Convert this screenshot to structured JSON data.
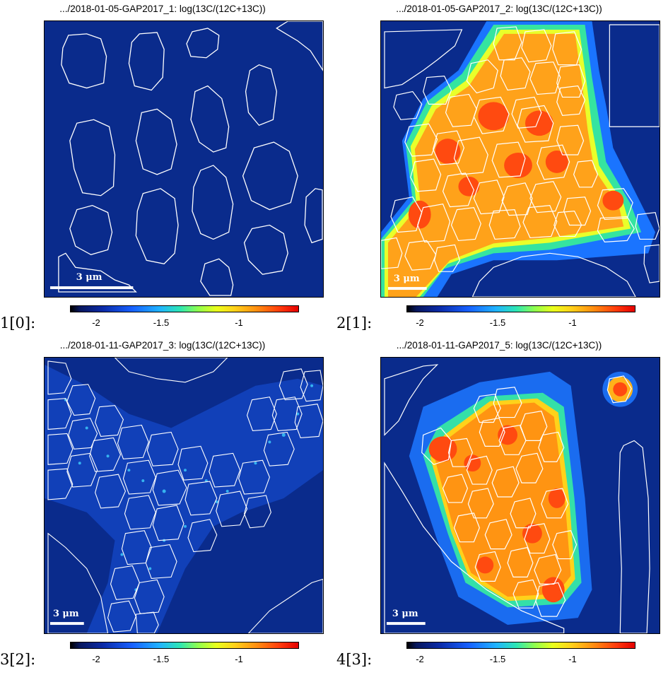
{
  "panels": [
    {
      "label": "1[0]:",
      "title": ".../2018-01-05-GAP2017_1: log(13C/(12C+13C))",
      "scalebar": "3 μm"
    },
    {
      "label": "2[1]:",
      "title": ".../2018-01-05-GAP2017_2: log(13C/(12C+13C))",
      "scalebar": "3 μm"
    },
    {
      "label": "3[2]:",
      "title": ".../2018-01-11-GAP2017_3: log(13C/(12C+13C))",
      "scalebar": "3 μm"
    },
    {
      "label": "4[3]:",
      "title": ".../2018-01-11-GAP2017_5: log(13C/(12C+13C))",
      "scalebar": "3 μm"
    }
  ],
  "colorbar": {
    "ticks": [
      "-2",
      "-1.5",
      "-1"
    ]
  },
  "colors": {
    "background": "#0a2b8c",
    "roi_outline": "#ffffff",
    "high": "#ff5a1a",
    "mid": "#3cf0a0"
  }
}
